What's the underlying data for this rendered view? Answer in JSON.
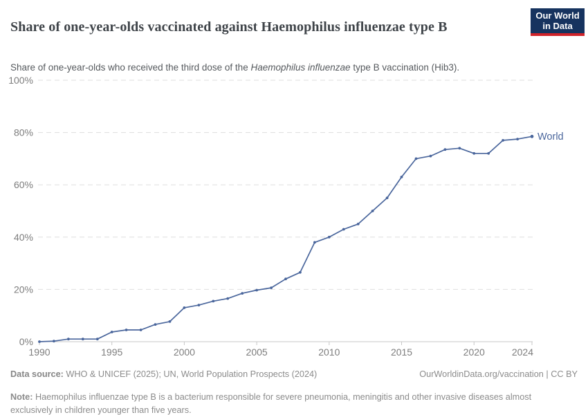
{
  "header": {
    "title": "Share of one-year-olds vaccinated against Haemophilus influenzae type B",
    "subtitle_prefix": "Share of one-year-olds who received the third dose of the ",
    "subtitle_italic": "Haemophilus influenzae",
    "subtitle_suffix": " type B vaccination (Hib3).",
    "logo": {
      "line1": "Our World",
      "line2": "in Data"
    }
  },
  "chart_data": {
    "type": "line",
    "title": "Share of one-year-olds vaccinated against Haemophilus influenzae type B",
    "xlabel": "",
    "ylabel": "",
    "xlim": [
      1990,
      2024
    ],
    "ylim": [
      0,
      100
    ],
    "grid": "horizontal-dashed",
    "legend": "end-of-line-label",
    "xticks": [
      1990,
      1995,
      2000,
      2005,
      2010,
      2015,
      2020,
      2024
    ],
    "yticks": [
      0,
      20,
      40,
      60,
      80,
      100
    ],
    "ytick_suffix": "%",
    "series": [
      {
        "name": "World",
        "color": "#4a669c",
        "x": [
          1990,
          1991,
          1992,
          1993,
          1994,
          1995,
          1996,
          1997,
          1998,
          1999,
          2000,
          2001,
          2002,
          2003,
          2004,
          2005,
          2006,
          2007,
          2008,
          2009,
          2010,
          2011,
          2012,
          2013,
          2014,
          2015,
          2016,
          2017,
          2018,
          2019,
          2020,
          2021,
          2022,
          2023,
          2024
        ],
        "values": [
          0,
          0.2,
          1,
          1,
          1,
          3.7,
          4.5,
          4.5,
          6.6,
          7.7,
          13,
          14,
          15.5,
          16.5,
          18.5,
          19.7,
          20.6,
          24,
          26.5,
          38,
          40,
          43,
          45,
          50,
          55,
          63,
          70,
          71,
          73.5,
          74,
          72,
          72,
          77,
          77.5,
          78.5
        ]
      }
    ]
  },
  "footer": {
    "source_label": "Data source:",
    "source_text": " WHO & UNICEF (2025); UN, World Population Prospects (2024)",
    "rights_url": "OurWorldinData.org/vaccination",
    "rights_sep": " | ",
    "rights_license": "CC BY",
    "note_label": "Note:",
    "note_text": " Haemophilus influenzae type B is a bacterium responsible for severe pneumonia, meningitis and other invasive diseases almost exclusively in children younger than five years."
  },
  "colors": {
    "line": "#4a669c",
    "gridline": "#dedede",
    "axis": "#c7c7c7",
    "tick_label": "#7d7d7d",
    "logo_bg": "#16335f",
    "logo_accent": "#d0232a"
  }
}
